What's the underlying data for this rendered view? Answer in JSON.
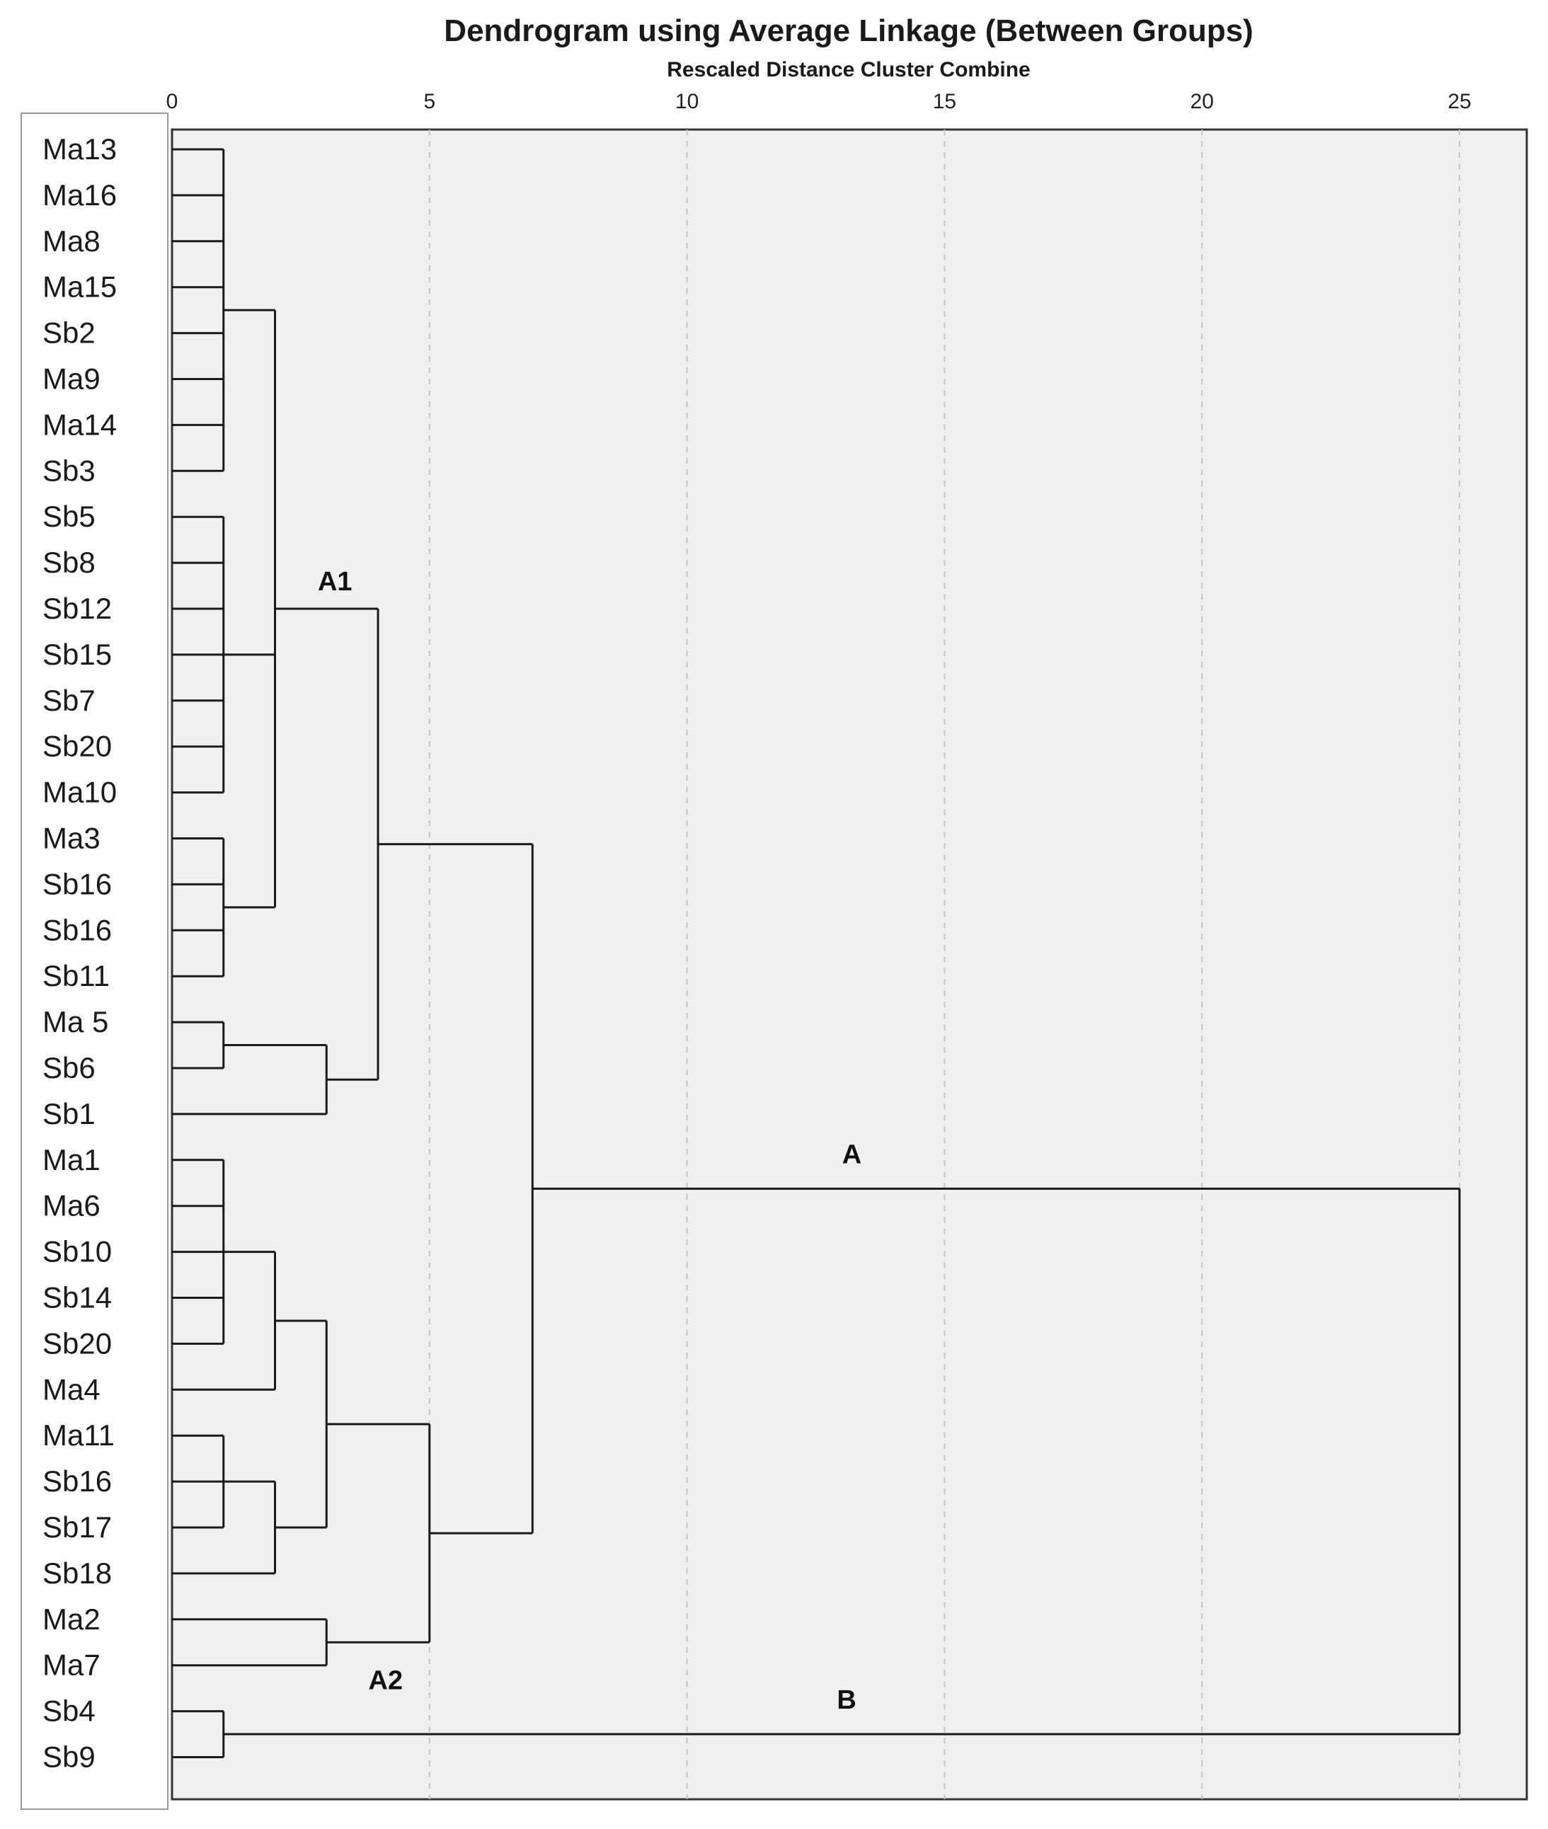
{
  "chart_data": {
    "type": "dendrogram",
    "title": "Dendrogram using Average Linkage (Between Groups)",
    "subtitle": "Rescaled Distance Cluster Combine",
    "xlim": [
      0,
      25
    ],
    "xticks": [
      0,
      5,
      10,
      15,
      20,
      25
    ],
    "grid": "vertical-dashed",
    "colors": {
      "background": "#ffffff",
      "plot_bg": "#f0f0f0",
      "line": "#1a1a1a",
      "grid": "#c4c4c4"
    },
    "leaves": [
      "Ma13",
      "Ma16",
      "Ma8",
      "Ma15",
      "Sb2",
      "Ma9",
      "Ma14",
      "Sb3",
      "Sb5",
      "Sb8",
      "Sb12",
      "Sb15",
      "Sb7",
      "Sb20",
      "Ma10",
      "Ma3",
      "Sb16",
      "Sb16",
      "Sb11",
      "Ma 5",
      "Sb6",
      "Sb1",
      "Ma1",
      "Ma6",
      "Sb10",
      "Sb14",
      "Sb20",
      "Ma4",
      "Ma11",
      "Sb16",
      "Sb17",
      "Sb18",
      "Ma2",
      "Ma7",
      "Sb4",
      "Sb9"
    ],
    "merges": [
      {
        "id": "c1",
        "distance": 1,
        "children": [
          "L0",
          "L1",
          "L2",
          "L3",
          "L4",
          "L5",
          "L6",
          "L7"
        ]
      },
      {
        "id": "c2",
        "distance": 1,
        "children": [
          "L8",
          "L9",
          "L10",
          "L11",
          "L12",
          "L13",
          "L14"
        ]
      },
      {
        "id": "c3",
        "distance": 1,
        "children": [
          "L15",
          "L16",
          "L17",
          "L18"
        ]
      },
      {
        "id": "c4",
        "distance": 2,
        "children": [
          "c1",
          "c2",
          "c3"
        ]
      },
      {
        "id": "c5",
        "distance": 1,
        "children": [
          "L19",
          "L20"
        ]
      },
      {
        "id": "c6",
        "distance": 3,
        "children": [
          "c5",
          "L21"
        ]
      },
      {
        "id": "A1",
        "distance": 4,
        "children": [
          "c4",
          "c6"
        ],
        "label": "A1"
      },
      {
        "id": "c7",
        "distance": 1,
        "children": [
          "L22",
          "L23",
          "L24",
          "L25",
          "L26"
        ]
      },
      {
        "id": "c8",
        "distance": 2,
        "children": [
          "c7",
          "L27"
        ]
      },
      {
        "id": "c9",
        "distance": 1,
        "children": [
          "L28",
          "L29",
          "L30"
        ]
      },
      {
        "id": "c10",
        "distance": 2,
        "children": [
          "c9",
          "L31"
        ]
      },
      {
        "id": "c11",
        "distance": 3,
        "children": [
          "c8",
          "c10"
        ]
      },
      {
        "id": "c12",
        "distance": 3,
        "children": [
          "L32",
          "L33"
        ]
      },
      {
        "id": "A2",
        "distance": 5,
        "children": [
          "c11",
          "c12"
        ],
        "label": "A2"
      },
      {
        "id": "A",
        "distance": 7,
        "children": [
          "A1",
          "A2"
        ],
        "label": "A"
      },
      {
        "id": "B",
        "distance": 1,
        "children": [
          "L34",
          "L35"
        ],
        "label": "B"
      },
      {
        "id": "root",
        "distance": 25,
        "children": [
          "A",
          "B"
        ]
      }
    ]
  }
}
